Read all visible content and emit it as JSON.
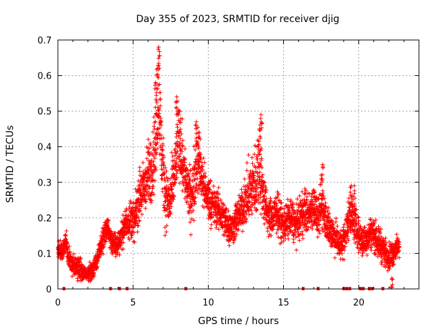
{
  "chart_data": {
    "type": "scatter",
    "title": "Day 355 of 2023, SRMTID for receiver djig",
    "xlabel": "GPS time / hours",
    "ylabel": "SRMTID / TECUs",
    "xlim": [
      0,
      24
    ],
    "ylim": [
      0,
      0.7
    ],
    "xticks": [
      0,
      5,
      10,
      15,
      20
    ],
    "yticks": [
      0,
      0.1,
      0.2,
      0.3,
      0.4,
      0.5,
      0.6,
      0.7
    ],
    "xtick_labels": [
      "0",
      "5",
      "10",
      "15",
      "20"
    ],
    "ytick_labels": [
      "0",
      "0.1",
      "0.2",
      "0.3",
      "0.4",
      "0.5",
      "0.6",
      "0.7"
    ],
    "grid": true,
    "marker": "+",
    "color": "#ff0000",
    "series": [
      {
        "name": "SRMTID",
        "envelope": {
          "x": [
            0.0,
            0.3,
            0.5,
            0.7,
            1.0,
            1.3,
            1.6,
            1.9,
            2.2,
            2.5,
            2.8,
            3.1,
            3.3,
            3.6,
            3.9,
            4.2,
            4.5,
            4.8,
            5.1,
            5.4,
            5.7,
            6.0,
            6.3,
            6.5,
            6.7,
            6.9,
            7.1,
            7.4,
            7.7,
            8.0,
            8.3,
            8.6,
            8.9,
            9.2,
            9.5,
            9.8,
            10.1,
            10.4,
            10.7,
            11.0,
            11.3,
            11.6,
            11.9,
            12.2,
            12.5,
            12.8,
            13.1,
            13.4,
            13.7,
            14.0,
            14.3,
            14.6,
            14.9,
            15.2,
            15.5,
            15.8,
            16.1,
            16.4,
            16.7,
            17.0,
            17.3,
            17.6,
            17.9,
            18.2,
            18.5,
            18.8,
            19.1,
            19.4,
            19.7,
            20.0,
            20.3,
            20.6,
            20.9,
            21.2,
            21.5,
            21.8,
            22.1,
            22.4,
            22.7
          ],
          "y": [
            0.11,
            0.1,
            0.14,
            0.09,
            0.07,
            0.06,
            0.05,
            0.04,
            0.05,
            0.07,
            0.11,
            0.15,
            0.17,
            0.13,
            0.12,
            0.15,
            0.18,
            0.2,
            0.19,
            0.26,
            0.28,
            0.32,
            0.35,
            0.42,
            0.55,
            0.38,
            0.27,
            0.24,
            0.3,
            0.42,
            0.36,
            0.28,
            0.25,
            0.36,
            0.33,
            0.27,
            0.25,
            0.23,
            0.22,
            0.2,
            0.18,
            0.17,
            0.2,
            0.22,
            0.25,
            0.28,
            0.3,
            0.35,
            0.25,
            0.2,
            0.2,
            0.22,
            0.18,
            0.19,
            0.2,
            0.18,
            0.2,
            0.22,
            0.21,
            0.24,
            0.19,
            0.24,
            0.18,
            0.16,
            0.14,
            0.12,
            0.15,
            0.22,
            0.19,
            0.15,
            0.13,
            0.15,
            0.16,
            0.14,
            0.12,
            0.1,
            0.09,
            0.11,
            0.12
          ],
          "spread": [
            0.03,
            0.03,
            0.04,
            0.04,
            0.03,
            0.03,
            0.03,
            0.02,
            0.03,
            0.03,
            0.03,
            0.04,
            0.04,
            0.04,
            0.04,
            0.04,
            0.05,
            0.06,
            0.06,
            0.08,
            0.09,
            0.1,
            0.12,
            0.15,
            0.14,
            0.12,
            0.1,
            0.08,
            0.1,
            0.11,
            0.1,
            0.08,
            0.09,
            0.11,
            0.08,
            0.07,
            0.07,
            0.06,
            0.06,
            0.06,
            0.06,
            0.05,
            0.06,
            0.06,
            0.08,
            0.1,
            0.12,
            0.14,
            0.08,
            0.06,
            0.06,
            0.06,
            0.06,
            0.06,
            0.06,
            0.06,
            0.06,
            0.07,
            0.06,
            0.07,
            0.06,
            0.07,
            0.06,
            0.06,
            0.05,
            0.05,
            0.05,
            0.07,
            0.06,
            0.05,
            0.05,
            0.05,
            0.05,
            0.05,
            0.05,
            0.04,
            0.04,
            0.04,
            0.03
          ]
        },
        "peaks": [
          {
            "x": 6.7,
            "y": 0.68
          },
          {
            "x": 6.6,
            "y": 0.62
          },
          {
            "x": 6.5,
            "y": 0.58
          },
          {
            "x": 7.9,
            "y": 0.54
          },
          {
            "x": 8.1,
            "y": 0.5
          },
          {
            "x": 9.2,
            "y": 0.47
          },
          {
            "x": 9.4,
            "y": 0.44
          },
          {
            "x": 13.5,
            "y": 0.49
          },
          {
            "x": 13.4,
            "y": 0.45
          },
          {
            "x": 17.6,
            "y": 0.35
          },
          {
            "x": 17.5,
            "y": 0.32
          },
          {
            "x": 19.5,
            "y": 0.29
          },
          {
            "x": 19.7,
            "y": 0.29
          },
          {
            "x": 1.3,
            "y": 0.03
          },
          {
            "x": 22.2,
            "y": 0.03
          }
        ],
        "zero_x": [
          0.4,
          3.5,
          4.1,
          4.6,
          8.5,
          16.3,
          17.3,
          19.0,
          19.2,
          19.4,
          20.1,
          20.3,
          20.7,
          20.9,
          21.6
        ]
      }
    ]
  }
}
